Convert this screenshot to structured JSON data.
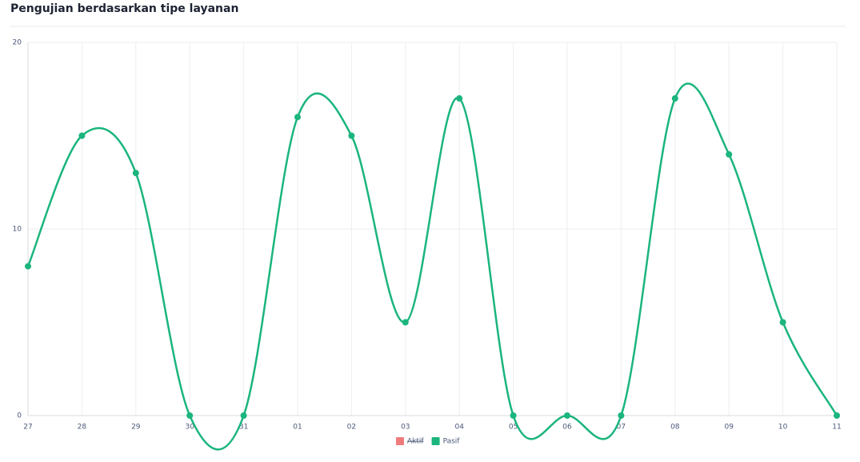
{
  "chart_data": {
    "type": "line",
    "title": "Pengujian berdasarkan tipe layanan",
    "categories": [
      "27",
      "28",
      "29",
      "30",
      "31",
      "01",
      "02",
      "03",
      "04",
      "05",
      "06",
      "07",
      "08",
      "09",
      "10",
      "11"
    ],
    "series": [
      {
        "name": "Aktif",
        "color": "#f07b7b",
        "hidden": true,
        "values": [
          null,
          null,
          null,
          null,
          null,
          null,
          null,
          null,
          null,
          null,
          null,
          null,
          null,
          null,
          null,
          null
        ]
      },
      {
        "name": "Pasif",
        "color": "#1bb57d",
        "values": [
          8,
          15,
          13,
          0,
          0,
          16,
          15,
          5,
          17,
          0,
          0,
          0,
          17,
          14,
          5,
          0
        ]
      }
    ],
    "ylim": [
      0,
      20
    ],
    "yticks": [
      0,
      10,
      20
    ],
    "grid": true,
    "smooth": true
  }
}
